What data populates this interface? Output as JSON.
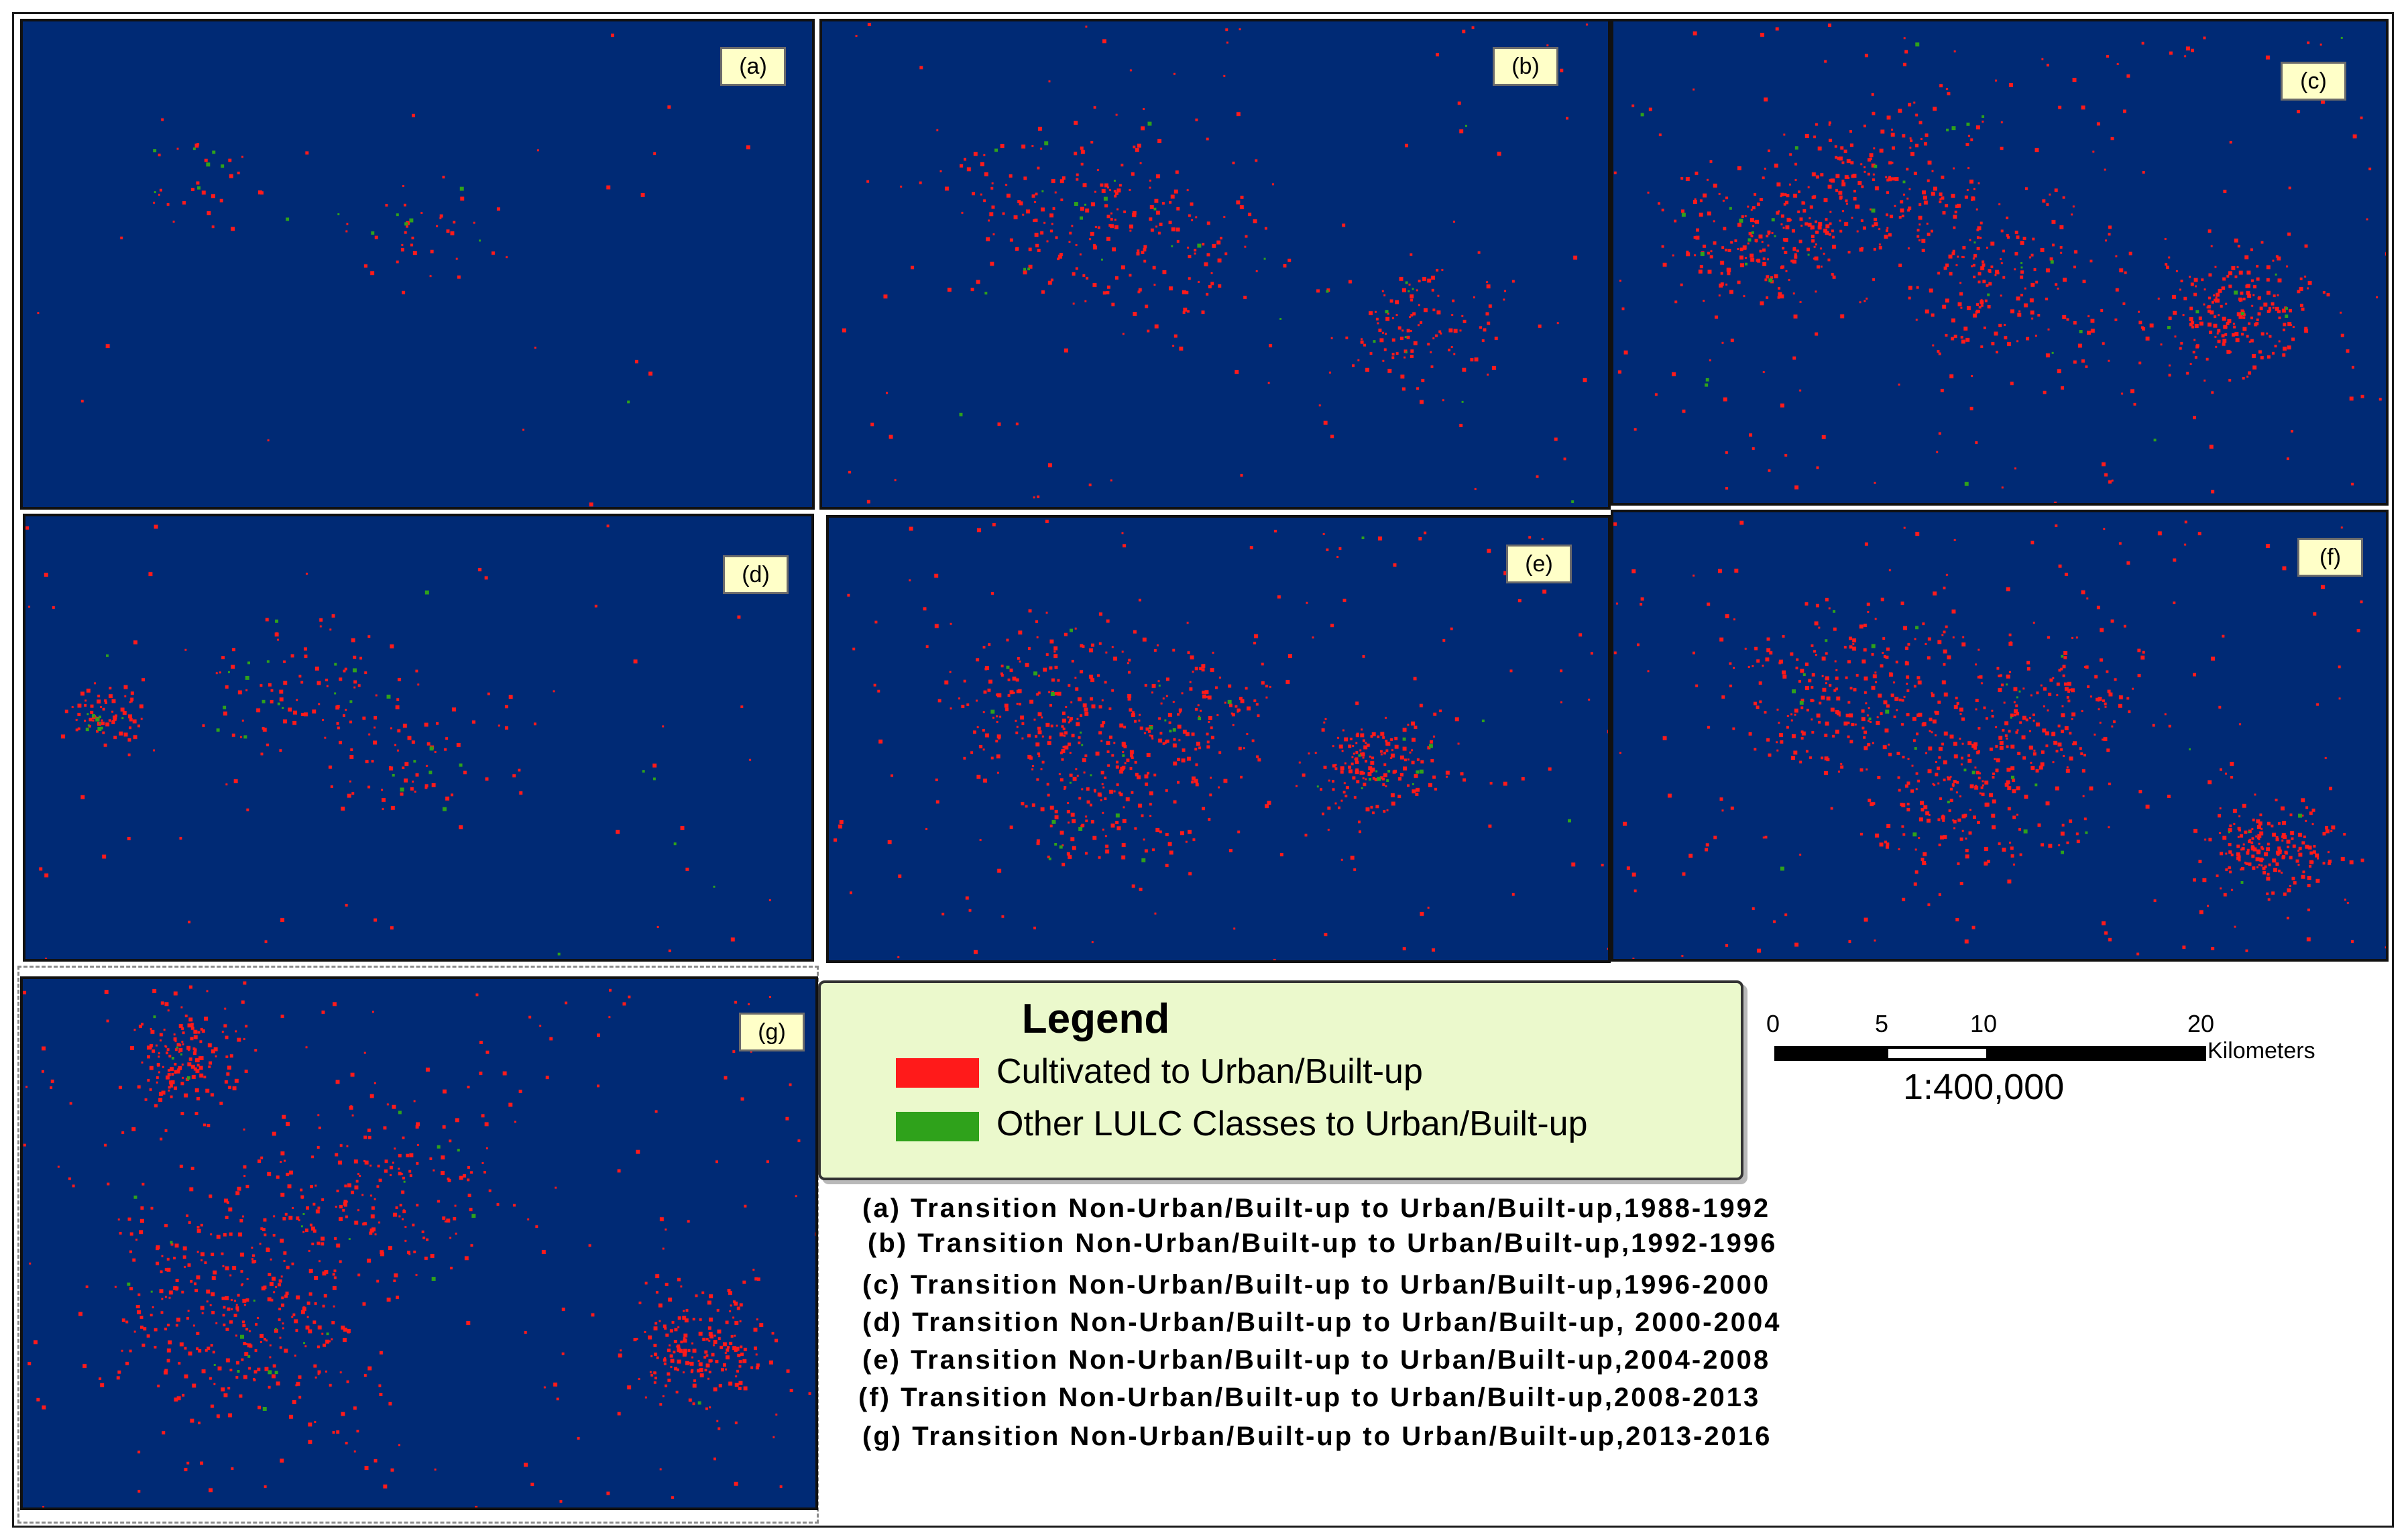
{
  "panels": [
    {
      "label": "(a)",
      "red_density": 80,
      "green_density": 16
    },
    {
      "label": "(b)",
      "red_density": 420,
      "green_density": 30
    },
    {
      "label": "(c)",
      "red_density": 900,
      "green_density": 40
    },
    {
      "label": "(d)",
      "red_density": 260,
      "green_density": 40
    },
    {
      "label": "(e)",
      "red_density": 720,
      "green_density": 40
    },
    {
      "label": "(f)",
      "red_density": 900,
      "green_density": 30
    },
    {
      "label": "(g)",
      "red_density": 1000,
      "green_density": 30
    }
  ],
  "legend": {
    "title": "Legend",
    "items": [
      {
        "label": "Cultivated to Urban/Built-up",
        "color": "#ff1a1a"
      },
      {
        "label": "Other LULC Classes to Urban/Built-up",
        "color": "#2fa21b"
      }
    ]
  },
  "scale": {
    "ticks": [
      "0",
      "5",
      "10",
      "20"
    ],
    "unit": "Kilometers",
    "ratio": "1:400,000"
  },
  "captions": [
    "(a) Transition Non-Urban/Built-up to Urban/Built-up,1988-1992",
    "(b) Transition Non-Urban/Built-up to Urban/Built-up,1992-1996",
    "(c) Transition Non-Urban/Built-up to Urban/Built-up,1996-2000",
    "(d) Transition Non-Urban/Built-up to Urban/Built-up, 2000-2004",
    "(e) Transition Non-Urban/Built-up to Urban/Built-up,2004-2008",
    "(f) Transition Non-Urban/Built-up to Urban/Built-up,2008-2013",
    "(g) Transition Non-Urban/Built-up to Urban/Built-up,2013-2016"
  ],
  "colors": {
    "background": "#002a75",
    "cultivated": "#ff1a1a",
    "other": "#2fa21b"
  }
}
